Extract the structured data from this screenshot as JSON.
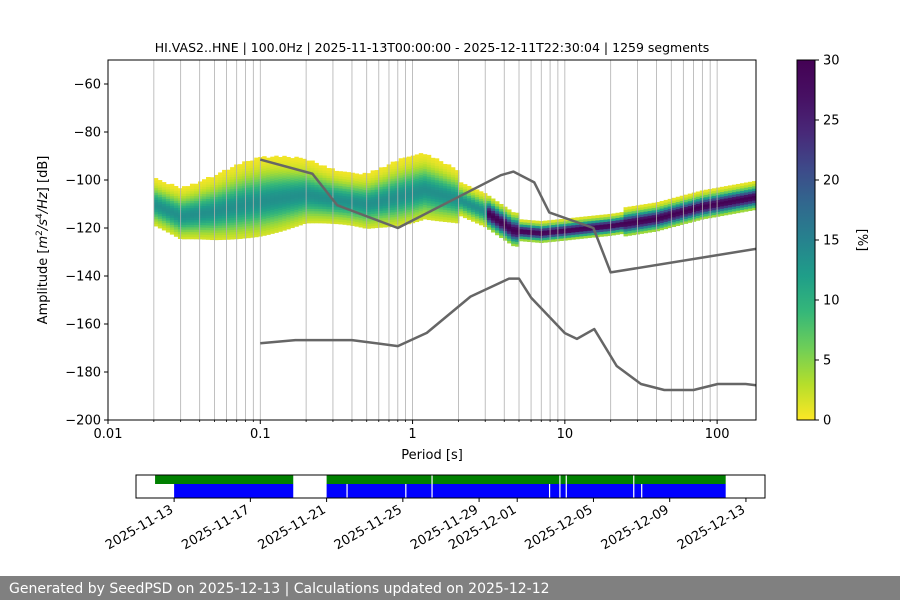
{
  "chart_data": [
    {
      "type": "heatmap",
      "title": "HI.VAS2..HNE | 100.0Hz | 2025-11-13T00:00:00 - 2025-12-11T22:30:04 | 1259 segments",
      "xlabel": "Period [s]",
      "ylabel_parts": [
        "Amplitude [",
        "m",
        "2",
        "/",
        "s",
        "4",
        "/",
        "Hz",
        "] [dB]"
      ],
      "x_scale": "log",
      "xlim": [
        0.01,
        180
      ],
      "ylim": [
        -200,
        -50
      ],
      "x_ticks": [
        0.01,
        0.1,
        1,
        10,
        100
      ],
      "x_tick_labels": [
        "0.01",
        "0.1",
        "1",
        "10",
        "100"
      ],
      "y_ticks": [
        -200,
        -180,
        -160,
        -140,
        -120,
        -100,
        -80,
        -60
      ],
      "y_tick_labels": [
        "−200",
        "−180",
        "−160",
        "−140",
        "−120",
        "−100",
        "−80",
        "−60"
      ],
      "grid": "vertical lines at each decade subdivision",
      "colorbar": {
        "label": "[%]",
        "range": [
          0,
          30
        ],
        "ticks": [
          0,
          5,
          10,
          15,
          20,
          25,
          30
        ],
        "tick_labels": [
          "0",
          "5",
          "10",
          "15",
          "20",
          "25",
          "30"
        ],
        "colormap": "viridis_r"
      },
      "psd_mode_curve": {
        "period": [
          0.02,
          0.03,
          0.05,
          0.08,
          0.12,
          0.2,
          0.3,
          0.5,
          0.8,
          1.2,
          2,
          3,
          4.6,
          7,
          10,
          14,
          20,
          40,
          80,
          180
        ],
        "db": [
          -110,
          -115,
          -113,
          -110,
          -108,
          -106,
          -108,
          -110,
          -107,
          -104,
          -108,
          -113,
          -121,
          -122,
          -121,
          -120,
          -119,
          -116,
          -111,
          -107
        ]
      },
      "nlnm": {
        "name": "NLNM",
        "period": [
          0.1,
          0.17,
          0.4,
          0.8,
          1.24,
          2.4,
          4.3,
          5,
          6,
          10,
          12,
          15.6,
          21.9,
          31.6,
          45,
          70,
          101,
          154,
          180
        ],
        "db": [
          -168,
          -166.7,
          -166.7,
          -169.2,
          -163.7,
          -148.6,
          -141.1,
          -141.1,
          -149,
          -163.8,
          -166.2,
          -162.1,
          -177.5,
          -185,
          -187.5,
          -187.5,
          -185,
          -185,
          -185.5
        ]
      },
      "nhnm": {
        "name": "NHNM",
        "period": [
          0.1,
          0.22,
          0.32,
          0.8,
          3.8,
          4.6,
          6.3,
          7.9,
          15.4,
          20,
          180
        ],
        "db": [
          -91.5,
          -97.4,
          -110.5,
          -120,
          -98,
          -96.5,
          -101,
          -113.5,
          -120,
          -138.5,
          -128.7
        ]
      }
    },
    {
      "type": "timeline",
      "x_range": [
        "2025-11-11",
        "2025-12-14"
      ],
      "x_ticks": [
        "2025-11-13",
        "2025-11-17",
        "2025-11-21",
        "2025-11-25",
        "2025-11-29",
        "2025-12-01",
        "2025-12-05",
        "2025-12-09",
        "2025-12-13"
      ],
      "data_availability": {
        "color": "#0000ff",
        "intervals": [
          [
            "2025-11-13",
            "2025-11-19T06"
          ],
          [
            "2025-11-21",
            "2025-12-11T22:30"
          ]
        ],
        "gaps": [
          "2025-11-22T01",
          "2025-11-25T03",
          "2025-11-26T12",
          "2025-12-02T16",
          "2025-12-03T05",
          "2025-12-03T13",
          "2025-12-07T02",
          "2025-12-07T12"
        ]
      },
      "psd_coverage": {
        "color": "#008000",
        "intervals": [
          [
            "2025-11-12",
            "2025-11-19T06"
          ],
          [
            "2025-11-21",
            "2025-12-11T22:30"
          ]
        ],
        "gaps": [
          "2025-11-26T12",
          "2025-12-03T05",
          "2025-12-03T13",
          "2025-12-07T02"
        ]
      }
    }
  ],
  "footer": "Generated by SeedPSD on 2025-12-13 | Calculations updated on 2025-12-12"
}
